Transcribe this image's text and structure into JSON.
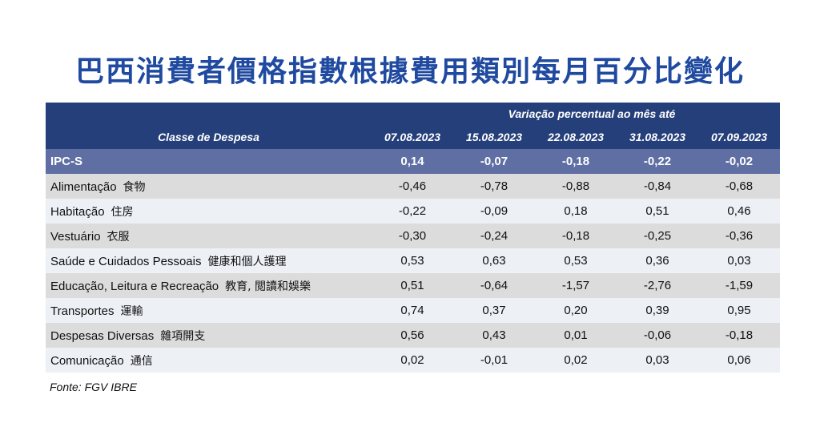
{
  "title": "巴西消費者價格指數根據費用類別每月百分比變化",
  "chart_data": {
    "type": "table",
    "span_header": "Variação percentual ao mês até",
    "column_header": "Classe de Despesa",
    "dates": [
      "07.08.2023",
      "15.08.2023",
      "22.08.2023",
      "31.08.2023",
      "07.09.2023"
    ],
    "rows": [
      {
        "label": "IPC-S",
        "label_zh": "",
        "values": [
          "0,14",
          "-0,07",
          "-0,18",
          "-0,22",
          "-0,02"
        ]
      },
      {
        "label": "Alimentação",
        "label_zh": "食物",
        "values": [
          "-0,46",
          "-0,78",
          "-0,88",
          "-0,84",
          "-0,68"
        ]
      },
      {
        "label": "Habitação",
        "label_zh": "住房",
        "values": [
          "-0,22",
          "-0,09",
          "0,18",
          "0,51",
          "0,46"
        ]
      },
      {
        "label": "Vestuário",
        "label_zh": "衣服",
        "values": [
          "-0,30",
          "-0,24",
          "-0,18",
          "-0,25",
          "-0,36"
        ]
      },
      {
        "label": "Saúde e Cuidados Pessoais",
        "label_zh": "健康和個人護理",
        "values": [
          "0,53",
          "0,63",
          "0,53",
          "0,36",
          "0,03"
        ]
      },
      {
        "label": "Educação, Leitura e Recreação",
        "label_zh": "教育, 閲讀和娛樂",
        "values": [
          "0,51",
          "-0,64",
          "-1,57",
          "-2,76",
          "-1,59"
        ]
      },
      {
        "label": "Transportes",
        "label_zh": "運輸",
        "values": [
          "0,74",
          "0,37",
          "0,20",
          "0,39",
          "0,95"
        ]
      },
      {
        "label": "Despesas Diversas",
        "label_zh": "雜項開支",
        "values": [
          "0,56",
          "0,43",
          "0,01",
          "-0,06",
          "-0,18"
        ]
      },
      {
        "label": "Comunicação",
        "label_zh": "通信",
        "values": [
          "0,02",
          "-0,01",
          "0,02",
          "0,03",
          "0,06"
        ]
      }
    ]
  },
  "source": "Fonte: FGV IBRE",
  "colors": {
    "title": "#1f4aa0",
    "header_bg": "#253f7a",
    "ipc_row_bg": "#5f6fa3",
    "row_alt_bg": "#dcdcdc",
    "row_plain_bg": "#edf0f5"
  }
}
